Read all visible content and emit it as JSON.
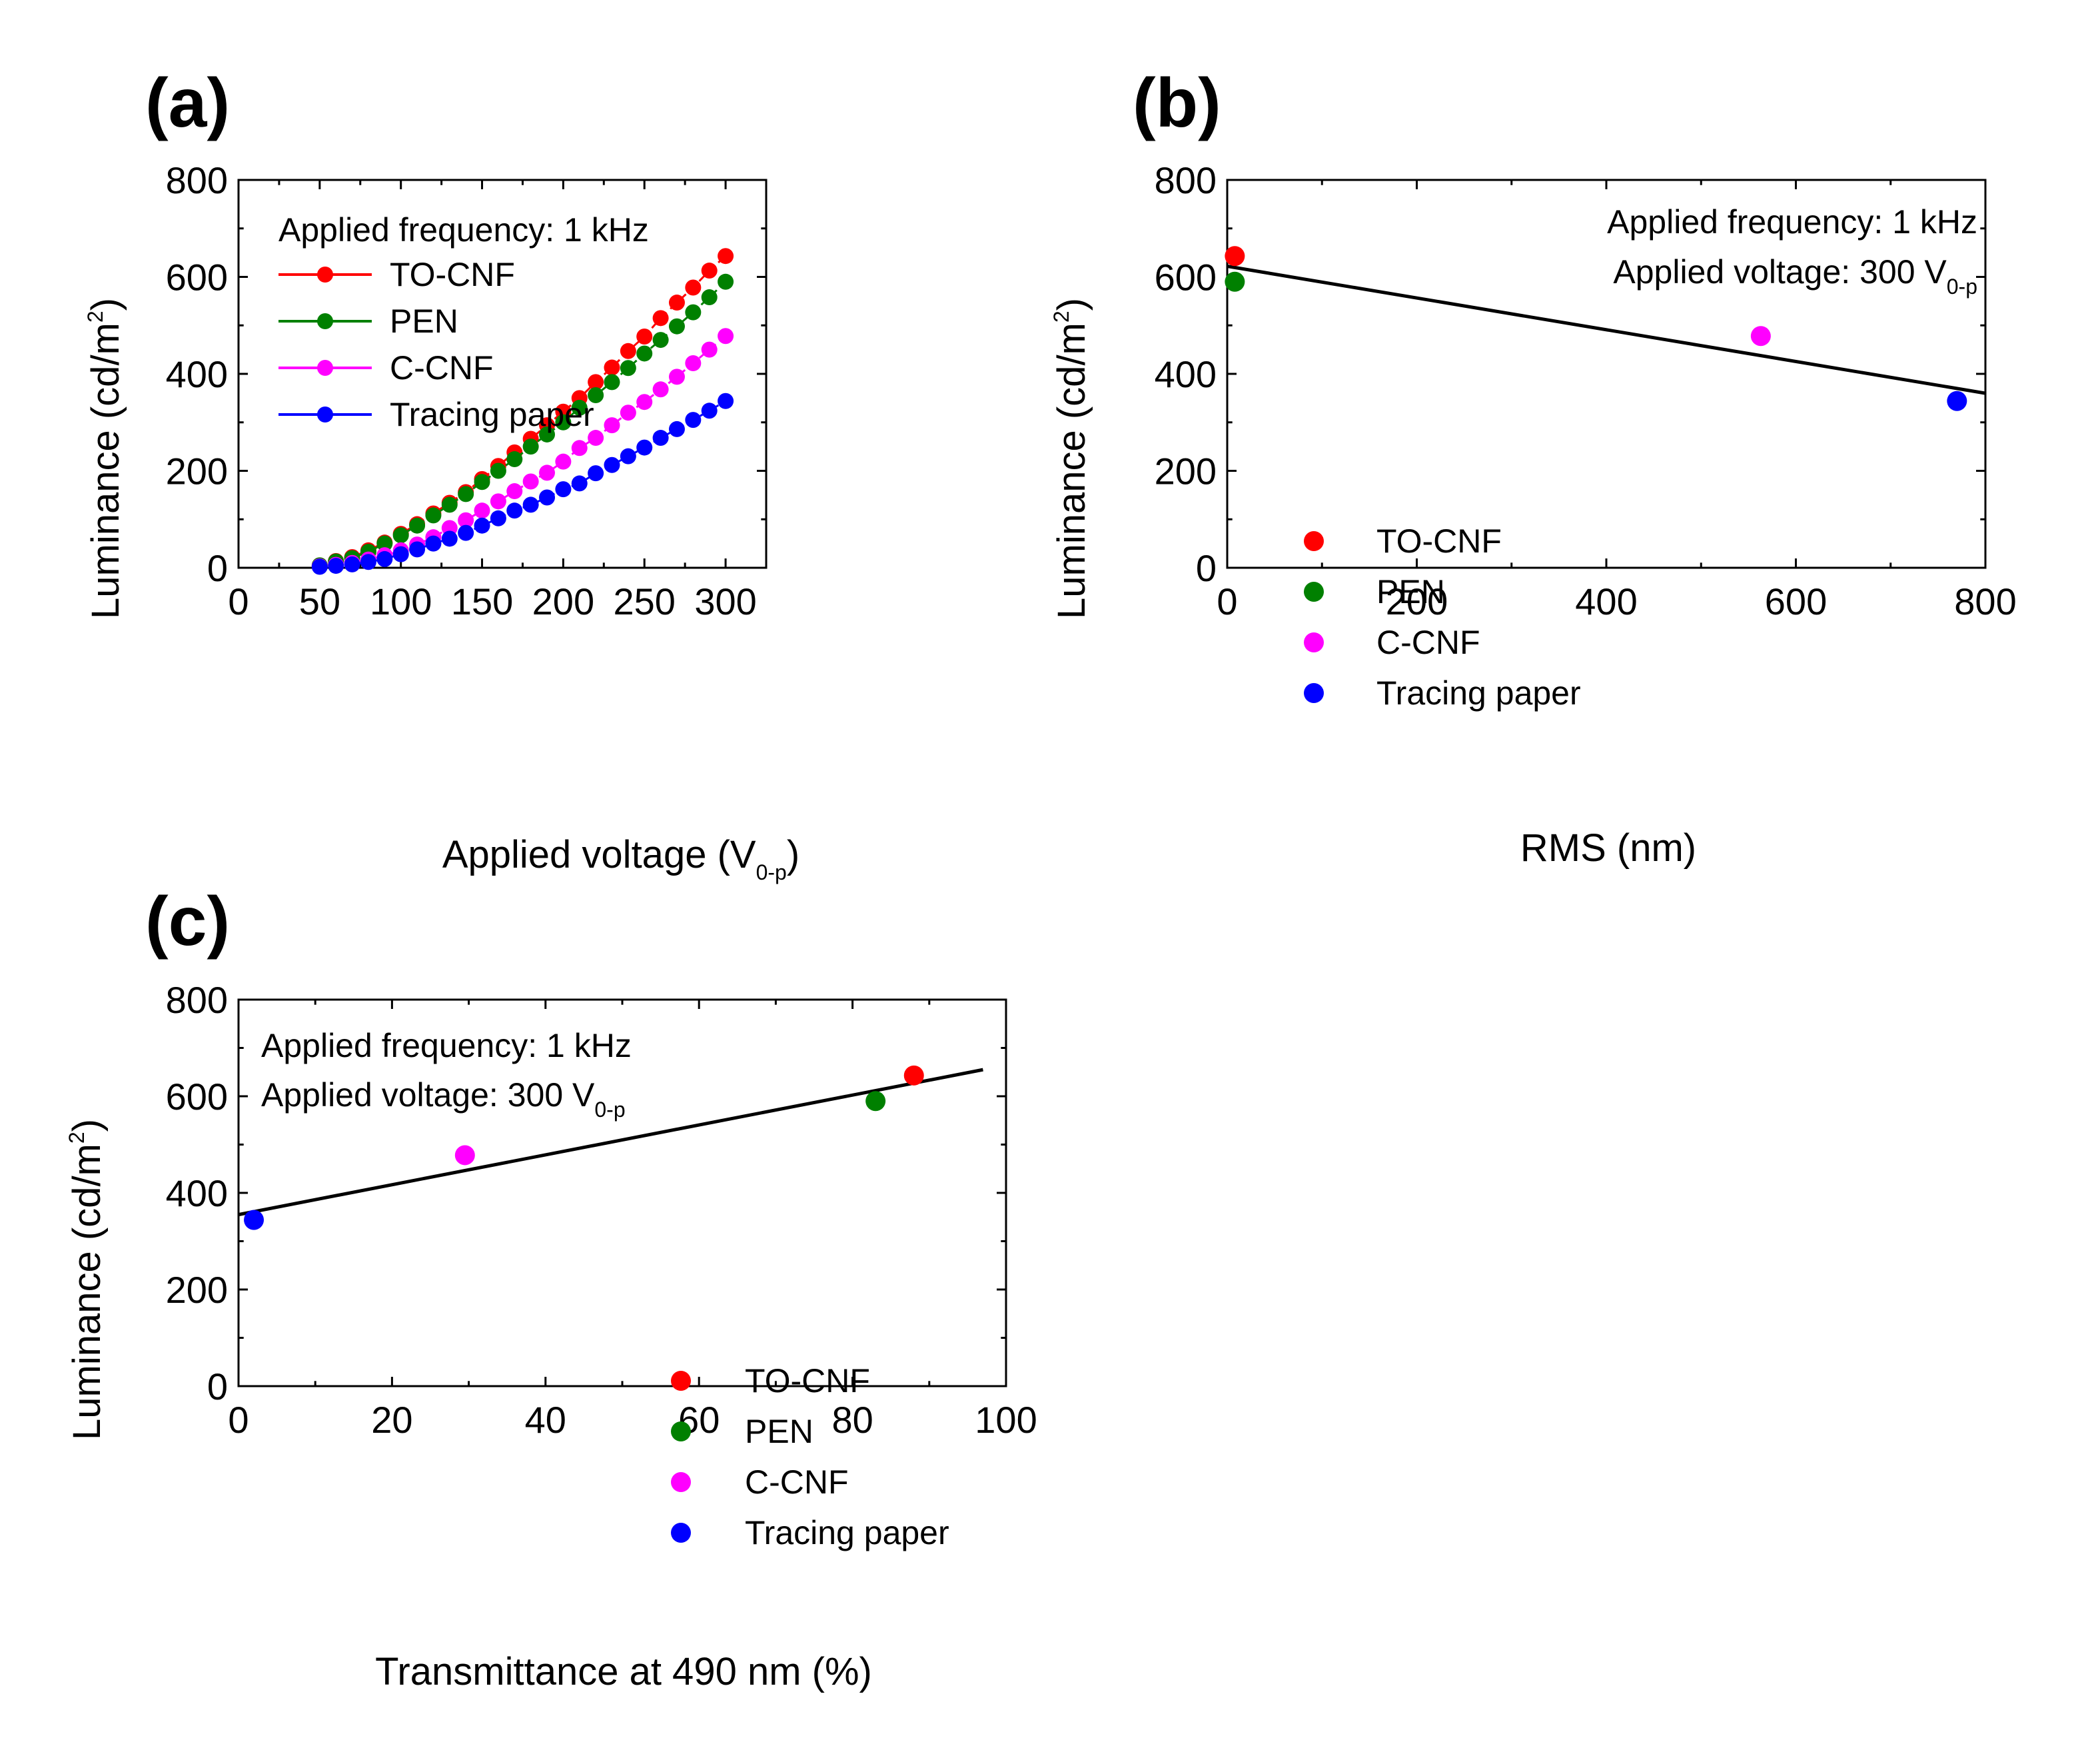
{
  "colors": {
    "TO-CNF": "#ff0000",
    "PEN": "#008000",
    "C-CNF": "#ff00ff",
    "Tracing paper": "#0000ff",
    "fit": "#000000"
  },
  "chart_data": [
    {
      "id": "a",
      "type": "line",
      "panel_label": "(a)",
      "xlabel_main": "Applied voltage (V",
      "xlabel_sub": "0-p",
      "xlabel_end": ")",
      "ylabel_main": "Luminance (cd/m",
      "ylabel_sup": "2",
      "ylabel_end": ")",
      "xlim": [
        0,
        325
      ],
      "ylim": [
        0,
        800
      ],
      "xticks": [
        0,
        50,
        100,
        150,
        200,
        250,
        300
      ],
      "yticks": [
        0,
        200,
        400,
        600,
        800
      ],
      "annotations": [
        "Applied frequency: 1 kHz"
      ],
      "x": [
        50,
        60,
        70,
        80,
        90,
        100,
        110,
        120,
        130,
        140,
        150,
        160,
        170,
        180,
        190,
        200,
        210,
        220,
        230,
        240,
        250,
        260,
        270,
        280,
        290,
        300
      ],
      "series": [
        {
          "name": "TO-CNF",
          "values": [
            5,
            14,
            22,
            36,
            52,
            70,
            90,
            112,
            134,
            156,
            183,
            210,
            238,
            266,
            294,
            322,
            350,
            383,
            413,
            447,
            477,
            515,
            547,
            578,
            613,
            643
          ]
        },
        {
          "name": "PEN",
          "values": [
            5,
            13,
            20,
            33,
            50,
            67,
            87,
            108,
            130,
            152,
            177,
            200,
            224,
            250,
            275,
            300,
            330,
            356,
            383,
            412,
            442,
            470,
            498,
            527,
            558,
            590
          ]
        },
        {
          "name": "C-CNF",
          "values": [
            3,
            6,
            10,
            17,
            26,
            36,
            48,
            63,
            82,
            98,
            118,
            137,
            158,
            178,
            196,
            219,
            247,
            268,
            294,
            320,
            342,
            368,
            394,
            422,
            450,
            478
          ]
        },
        {
          "name": "Tracing paper",
          "values": [
            2,
            4,
            7,
            12,
            18,
            28,
            38,
            50,
            60,
            72,
            87,
            102,
            118,
            130,
            145,
            162,
            174,
            195,
            212,
            230,
            248,
            268,
            286,
            305,
            324,
            344
          ]
        }
      ]
    },
    {
      "id": "b",
      "type": "scatter",
      "panel_label": "(b)",
      "xlabel_main": "RMS (nm)",
      "ylabel_main": "Luminance (cd/m",
      "ylabel_sup": "2",
      "ylabel_end": ")",
      "xlim": [
        0,
        800
      ],
      "ylim": [
        0,
        800
      ],
      "xticks": [
        0,
        200,
        400,
        600,
        800
      ],
      "yticks": [
        0,
        200,
        400,
        600,
        800
      ],
      "annotations": [
        "Applied frequency: 1 kHz",
        "Applied voltage: 300 V"
      ],
      "annotation_sub": "0-p",
      "points": [
        {
          "name": "TO-CNF",
          "x": 8,
          "y": 643
        },
        {
          "name": "PEN",
          "x": 8,
          "y": 590
        },
        {
          "name": "C-CNF",
          "x": 563,
          "y": 478
        },
        {
          "name": "Tracing paper",
          "x": 770,
          "y": 344
        }
      ],
      "fit": {
        "x": [
          0,
          800
        ],
        "y": [
          622,
          360
        ]
      }
    },
    {
      "id": "c",
      "type": "scatter",
      "panel_label": "(c)",
      "xlabel_main": "Transmittance at 490 nm (%)",
      "ylabel_main": "Luminance (cd/m",
      "ylabel_sup": "2",
      "ylabel_end": ")",
      "xlim": [
        0,
        100
      ],
      "ylim": [
        0,
        800
      ],
      "xticks": [
        0,
        20,
        40,
        60,
        80,
        100
      ],
      "yticks": [
        0,
        200,
        400,
        600,
        800
      ],
      "annotations": [
        "Applied frequency: 1 kHz",
        "Applied voltage: 300 V"
      ],
      "annotation_sub": "0-p",
      "points": [
        {
          "name": "TO-CNF",
          "x": 88,
          "y": 643
        },
        {
          "name": "PEN",
          "x": 83,
          "y": 590
        },
        {
          "name": "C-CNF",
          "x": 29.5,
          "y": 478
        },
        {
          "name": "Tracing paper",
          "x": 2,
          "y": 344
        }
      ],
      "fit": {
        "x": [
          0,
          97
        ],
        "y": [
          355,
          655
        ]
      }
    }
  ]
}
